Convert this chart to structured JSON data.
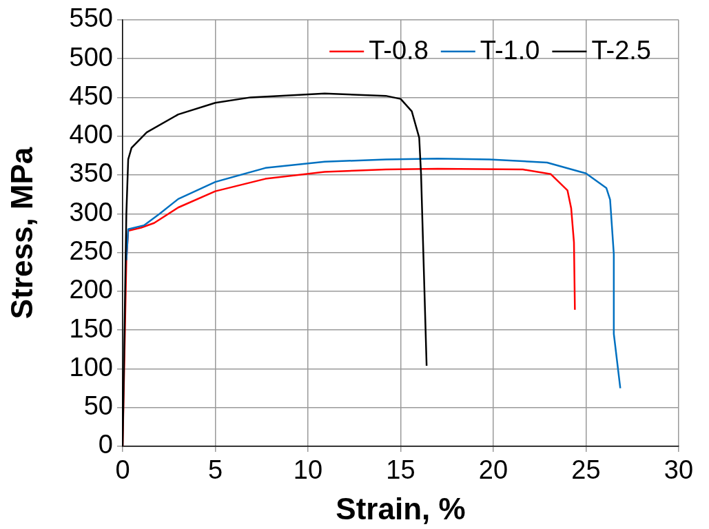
{
  "chart_data": {
    "type": "line",
    "xlabel": "Strain, %",
    "ylabel": "Stress, MPa",
    "xlim": [
      0,
      30
    ],
    "xticks": [
      0,
      5,
      10,
      15,
      20,
      25,
      30
    ],
    "ylim": [
      0,
      550
    ],
    "yticks": [
      0,
      50,
      100,
      150,
      200,
      250,
      300,
      350,
      400,
      450,
      500,
      550
    ],
    "grid": true,
    "legend": "top right",
    "marker": "none",
    "line_style": "solid",
    "series": [
      {
        "name": "T-0.8",
        "color": "#ff0000",
        "x": [
          0,
          0.1,
          0.2,
          0.3,
          1.0,
          1.7,
          3,
          5,
          7.7,
          10.9,
          14.2,
          17,
          21.6,
          23.1,
          24.0,
          24.2,
          24.35,
          24.4
        ],
        "values": [
          0,
          120,
          240,
          278,
          282,
          288,
          308,
          329,
          345,
          354,
          357,
          358,
          357,
          351,
          330,
          307,
          263,
          176
        ]
      },
      {
        "name": "T-1.0",
        "color": "#0070c0",
        "x": [
          0.2,
          0.3,
          1.15,
          2,
          3,
          5,
          7.7,
          10.9,
          14.2,
          17,
          19.8,
          22.9,
          25,
          26.1,
          26.3,
          26.5,
          26.5,
          26.85
        ],
        "values": [
          240,
          280,
          285,
          300,
          319,
          341,
          359,
          367,
          370,
          371,
          370,
          366,
          352,
          333,
          318,
          248,
          145,
          75
        ]
      },
      {
        "name": "T-2.5",
        "color": "#000000",
        "x": [
          0,
          0.1,
          0.2,
          0.3,
          0.48,
          1.3,
          3,
          5,
          6.9,
          10.9,
          14.2,
          15.0,
          15.6,
          16.0,
          16.1,
          16.4
        ],
        "values": [
          0,
          150,
          300,
          370,
          385,
          405,
          428,
          443,
          450,
          455,
          452,
          448,
          432,
          398,
          351,
          104
        ]
      }
    ]
  }
}
